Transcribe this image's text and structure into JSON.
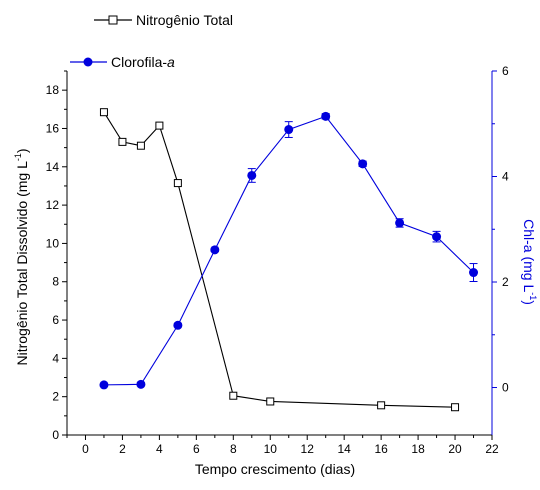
{
  "chart_data": {
    "type": "line",
    "xlabel": "Tempo crescimento (dias)",
    "ylabel_left": "Nitrogênio Total Dissolvido (mg L",
    "ylabel_left_sup": "-1",
    "ylabel_left_tail": ")",
    "ylabel_right": "Chl-a (mg L",
    "ylabel_right_sup": "-1",
    "ylabel_right_tail": ")",
    "xlim": [
      -1,
      22
    ],
    "ylim_left": [
      0,
      19
    ],
    "ylim_right": [
      -0.9,
      6
    ],
    "x_ticks": [
      0,
      2,
      4,
      6,
      8,
      10,
      12,
      14,
      16,
      18,
      20,
      22
    ],
    "y_left_ticks": [
      0,
      2,
      4,
      6,
      8,
      10,
      12,
      14,
      16,
      18
    ],
    "y_right_ticks": [
      0,
      2,
      4,
      6
    ],
    "legend_placement": "top-left",
    "colors": {
      "nitrogen": "#000000",
      "chlorophyll": "#0000dd"
    },
    "series": [
      {
        "name": "Nitrogênio Total",
        "axis": "left",
        "marker": "open-square",
        "x": [
          1,
          2,
          3,
          4,
          5,
          8,
          10,
          16,
          20
        ],
        "y": [
          16.85,
          15.3,
          15.1,
          16.15,
          13.15,
          2.05,
          1.75,
          1.55,
          1.45
        ],
        "err": [
          0.1,
          0.1,
          0.1,
          0.1,
          0.1,
          0.1,
          0.05,
          0.05,
          0.05
        ]
      },
      {
        "name": "Clorofila-",
        "name_italic": "a",
        "axis": "right",
        "marker": "filled-circle",
        "x": [
          1,
          3,
          5,
          7,
          9,
          11,
          13,
          15,
          17,
          19,
          21
        ],
        "y": [
          0.05,
          0.06,
          1.18,
          2.61,
          4.02,
          4.89,
          5.14,
          4.24,
          3.12,
          2.86,
          2.18
        ],
        "err": [
          0.03,
          0.03,
          0.03,
          0.03,
          0.13,
          0.15,
          0.05,
          0.05,
          0.08,
          0.1,
          0.17
        ]
      }
    ]
  }
}
